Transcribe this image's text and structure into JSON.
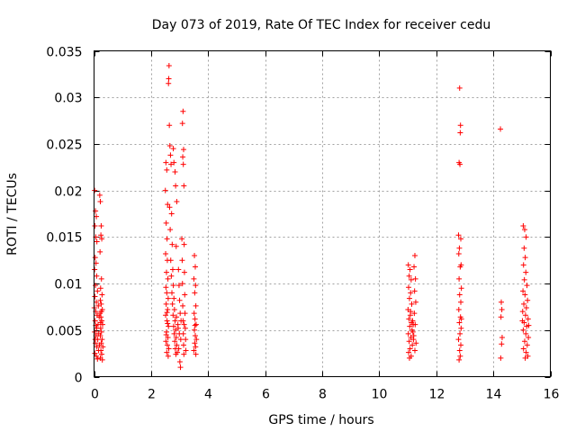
{
  "chart_data": {
    "type": "scatter",
    "title": "Day 073 of 2019, Rate Of TEC Index for receiver cedu",
    "xlabel": "GPS time / hours",
    "ylabel": "ROTI / TECUs",
    "xlim": [
      0,
      16
    ],
    "ylim": [
      0,
      0.035
    ],
    "x_ticks": [
      "0",
      "2",
      "4",
      "6",
      "8",
      "10",
      "12",
      "14",
      "16"
    ],
    "y_ticks": [
      "0",
      "0.005",
      "0.01",
      "0.015",
      "0.02",
      "0.025",
      "0.03",
      "0.035"
    ],
    "x_tick_values": [
      0,
      2,
      4,
      6,
      8,
      10,
      12,
      14,
      16
    ],
    "y_tick_values": [
      0,
      0.005,
      0.01,
      0.015,
      0.02,
      0.025,
      0.03,
      0.035
    ],
    "grid": true,
    "marker": "plus",
    "color": "#ff0000",
    "series": [
      {
        "name": "ROTI",
        "points": [
          [
            0.02,
            0.02
          ],
          [
            0.05,
            0.0178
          ],
          [
            0.08,
            0.0172
          ],
          [
            0.03,
            0.0162
          ],
          [
            0.06,
            0.015
          ],
          [
            0.1,
            0.0145
          ],
          [
            0.04,
            0.0128
          ],
          [
            0.07,
            0.0122
          ],
          [
            0.02,
            0.0115
          ],
          [
            0.09,
            0.0108
          ],
          [
            0.05,
            0.0098
          ],
          [
            0.12,
            0.0092
          ],
          [
            0.03,
            0.0086
          ],
          [
            0.08,
            0.008
          ],
          [
            0.15,
            0.0076
          ],
          [
            0.06,
            0.007
          ],
          [
            0.11,
            0.0066
          ],
          [
            0.04,
            0.006
          ],
          [
            0.14,
            0.0056
          ],
          [
            0.09,
            0.0052
          ],
          [
            0.02,
            0.0048
          ],
          [
            0.07,
            0.0044
          ],
          [
            0.13,
            0.004
          ],
          [
            0.05,
            0.0036
          ],
          [
            0.1,
            0.0032
          ],
          [
            0.16,
            0.0028
          ],
          [
            0.03,
            0.0025
          ],
          [
            0.08,
            0.0022
          ],
          [
            0.12,
            0.0019
          ],
          [
            0.06,
            0.0055
          ],
          [
            0.18,
            0.0064
          ],
          [
            0.01,
            0.0074
          ],
          [
            0.15,
            0.0046
          ],
          [
            0.19,
            0.0034
          ],
          [
            0.04,
            0.004
          ],
          [
            0.2,
            0.0195
          ],
          [
            0.22,
            0.0188
          ],
          [
            0.25,
            0.0162
          ],
          [
            0.24,
            0.0152
          ],
          [
            0.27,
            0.0148
          ],
          [
            0.21,
            0.0134
          ],
          [
            0.26,
            0.0105
          ],
          [
            0.23,
            0.0095
          ],
          [
            0.28,
            0.0088
          ],
          [
            0.22,
            0.0082
          ],
          [
            0.25,
            0.0078
          ],
          [
            0.29,
            0.0072
          ],
          [
            0.21,
            0.0068
          ],
          [
            0.24,
            0.0064
          ],
          [
            0.27,
            0.006
          ],
          [
            0.3,
            0.0056
          ],
          [
            0.23,
            0.0052
          ],
          [
            0.26,
            0.0048
          ],
          [
            0.22,
            0.0044
          ],
          [
            0.28,
            0.004
          ],
          [
            0.25,
            0.0036
          ],
          [
            0.31,
            0.0032
          ],
          [
            0.24,
            0.0028
          ],
          [
            0.27,
            0.0024
          ],
          [
            0.22,
            0.002
          ],
          [
            0.29,
            0.0018
          ],
          [
            0.26,
            0.007
          ],
          [
            0.23,
            0.0058
          ],
          [
            2.52,
            0.023
          ],
          [
            2.55,
            0.0222
          ],
          [
            2.5,
            0.02
          ],
          [
            2.58,
            0.0185
          ],
          [
            2.53,
            0.0165
          ],
          [
            2.56,
            0.0148
          ],
          [
            2.51,
            0.0132
          ],
          [
            2.57,
            0.0125
          ],
          [
            2.54,
            0.0112
          ],
          [
            2.59,
            0.0105
          ],
          [
            2.52,
            0.0096
          ],
          [
            2.55,
            0.009
          ],
          [
            2.6,
            0.0084
          ],
          [
            2.53,
            0.0078
          ],
          [
            2.58,
            0.0072
          ],
          [
            2.51,
            0.0066
          ],
          [
            2.56,
            0.006
          ],
          [
            2.61,
            0.0054
          ],
          [
            2.54,
            0.0048
          ],
          [
            2.59,
            0.0042
          ],
          [
            2.52,
            0.0038
          ],
          [
            2.57,
            0.0034
          ],
          [
            2.62,
            0.003
          ],
          [
            2.55,
            0.0026
          ],
          [
            2.6,
            0.0022
          ],
          [
            2.53,
            0.0045
          ],
          [
            2.58,
            0.0057
          ],
          [
            2.56,
            0.0069
          ],
          [
            2.63,
            0.0334
          ],
          [
            2.62,
            0.032
          ],
          [
            2.61,
            0.0315
          ],
          [
            2.64,
            0.027
          ],
          [
            2.66,
            0.0248
          ],
          [
            2.68,
            0.0238
          ],
          [
            2.7,
            0.0228
          ],
          [
            2.65,
            0.0182
          ],
          [
            2.72,
            0.0175
          ],
          [
            2.67,
            0.0158
          ],
          [
            2.74,
            0.0142
          ],
          [
            2.69,
            0.0125
          ],
          [
            2.76,
            0.0115
          ],
          [
            2.71,
            0.0108
          ],
          [
            2.78,
            0.0098
          ],
          [
            2.73,
            0.009
          ],
          [
            2.8,
            0.0084
          ],
          [
            2.75,
            0.0078
          ],
          [
            2.82,
            0.0072
          ],
          [
            2.77,
            0.0066
          ],
          [
            2.84,
            0.006
          ],
          [
            2.79,
            0.0054
          ],
          [
            2.86,
            0.005
          ],
          [
            2.81,
            0.0046
          ],
          [
            2.88,
            0.0042
          ],
          [
            2.83,
            0.0038
          ],
          [
            2.9,
            0.0034
          ],
          [
            2.85,
            0.003
          ],
          [
            2.92,
            0.0026
          ],
          [
            2.87,
            0.0024
          ],
          [
            2.94,
            0.0056
          ],
          [
            2.89,
            0.0064
          ],
          [
            2.78,
            0.0245
          ],
          [
            2.8,
            0.023
          ],
          [
            2.84,
            0.022
          ],
          [
            2.86,
            0.0205
          ],
          [
            2.9,
            0.0188
          ],
          [
            2.88,
            0.014
          ],
          [
            2.96,
            0.0115
          ],
          [
            2.98,
            0.0098
          ],
          [
            3.0,
            0.0082
          ],
          [
            3.02,
            0.0068
          ],
          [
            2.95,
            0.0052
          ],
          [
            3.04,
            0.004
          ],
          [
            2.97,
            0.003
          ],
          [
            3.01,
            0.0016
          ],
          [
            3.03,
            0.001
          ],
          [
            2.99,
            0.0046
          ],
          [
            3.05,
            0.006
          ],
          [
            3.12,
            0.0285
          ],
          [
            3.1,
            0.0272
          ],
          [
            3.14,
            0.0244
          ],
          [
            3.11,
            0.0236
          ],
          [
            3.13,
            0.0228
          ],
          [
            3.15,
            0.0205
          ],
          [
            3.08,
            0.0148
          ],
          [
            3.16,
            0.0142
          ],
          [
            3.09,
            0.0125
          ],
          [
            3.17,
            0.0112
          ],
          [
            3.1,
            0.01
          ],
          [
            3.18,
            0.0088
          ],
          [
            3.11,
            0.0076
          ],
          [
            3.19,
            0.0068
          ],
          [
            3.12,
            0.006
          ],
          [
            3.2,
            0.0052
          ],
          [
            3.13,
            0.0046
          ],
          [
            3.21,
            0.004
          ],
          [
            3.14,
            0.0034
          ],
          [
            3.22,
            0.0028
          ],
          [
            3.15,
            0.0024
          ],
          [
            3.16,
            0.0056
          ],
          [
            3.52,
            0.013
          ],
          [
            3.55,
            0.0118
          ],
          [
            3.5,
            0.0105
          ],
          [
            3.56,
            0.0098
          ],
          [
            3.53,
            0.009
          ],
          [
            3.57,
            0.0076
          ],
          [
            3.51,
            0.0068
          ],
          [
            3.54,
            0.0062
          ],
          [
            3.58,
            0.0056
          ],
          [
            3.52,
            0.005
          ],
          [
            3.55,
            0.0044
          ],
          [
            3.59,
            0.004
          ],
          [
            3.53,
            0.0036
          ],
          [
            3.56,
            0.0032
          ],
          [
            3.5,
            0.0028
          ],
          [
            3.57,
            0.0024
          ],
          [
            3.54,
            0.0055
          ],
          [
            11.02,
            0.012
          ],
          [
            11.08,
            0.0115
          ],
          [
            11.05,
            0.0108
          ],
          [
            11.12,
            0.0104
          ],
          [
            11.03,
            0.0096
          ],
          [
            11.1,
            0.009
          ],
          [
            11.06,
            0.0084
          ],
          [
            11.14,
            0.0078
          ],
          [
            11.01,
            0.0072
          ],
          [
            11.09,
            0.0066
          ],
          [
            11.04,
            0.0062
          ],
          [
            11.13,
            0.0058
          ],
          [
            11.07,
            0.0054
          ],
          [
            11.15,
            0.005
          ],
          [
            11.02,
            0.0046
          ],
          [
            11.11,
            0.0042
          ],
          [
            11.05,
            0.0038
          ],
          [
            11.16,
            0.0034
          ],
          [
            11.08,
            0.003
          ],
          [
            11.03,
            0.0026
          ],
          [
            11.12,
            0.0022
          ],
          [
            11.06,
            0.002
          ],
          [
            11.17,
            0.006
          ],
          [
            11.1,
            0.007
          ],
          [
            11.18,
            0.0048
          ],
          [
            11.2,
            0.004
          ],
          [
            11.19,
            0.0056
          ],
          [
            11.25,
            0.013
          ],
          [
            11.22,
            0.0118
          ],
          [
            11.27,
            0.0105
          ],
          [
            11.24,
            0.0092
          ],
          [
            11.28,
            0.008
          ],
          [
            11.23,
            0.0068
          ],
          [
            11.26,
            0.0056
          ],
          [
            11.21,
            0.0044
          ],
          [
            11.29,
            0.0036
          ],
          [
            11.25,
            0.0028
          ],
          [
            12.82,
            0.031
          ],
          [
            12.85,
            0.027
          ],
          [
            12.84,
            0.0262
          ],
          [
            12.8,
            0.023
          ],
          [
            12.83,
            0.0228
          ],
          [
            12.78,
            0.0152
          ],
          [
            12.86,
            0.0148
          ],
          [
            12.81,
            0.0138
          ],
          [
            12.79,
            0.0132
          ],
          [
            12.87,
            0.012
          ],
          [
            12.84,
            0.0118
          ],
          [
            12.8,
            0.0105
          ],
          [
            12.88,
            0.0095
          ],
          [
            12.82,
            0.0088
          ],
          [
            12.86,
            0.008
          ],
          [
            12.79,
            0.0072
          ],
          [
            12.85,
            0.0064
          ],
          [
            12.81,
            0.0058
          ],
          [
            12.87,
            0.0052
          ],
          [
            12.83,
            0.0046
          ],
          [
            12.78,
            0.004
          ],
          [
            12.86,
            0.0034
          ],
          [
            12.82,
            0.0028
          ],
          [
            12.84,
            0.0022
          ],
          [
            12.8,
            0.0018
          ],
          [
            12.88,
            0.0062
          ],
          [
            14.25,
            0.0266
          ],
          [
            14.28,
            0.008
          ],
          [
            14.3,
            0.0072
          ],
          [
            14.27,
            0.0064
          ],
          [
            14.31,
            0.0042
          ],
          [
            14.29,
            0.0035
          ],
          [
            14.26,
            0.002
          ],
          [
            15.05,
            0.0162
          ],
          [
            15.1,
            0.0158
          ],
          [
            15.15,
            0.015
          ],
          [
            15.08,
            0.0138
          ],
          [
            15.12,
            0.0128
          ],
          [
            15.06,
            0.012
          ],
          [
            15.14,
            0.0112
          ],
          [
            15.09,
            0.0104
          ],
          [
            15.18,
            0.0098
          ],
          [
            15.04,
            0.0092
          ],
          [
            15.11,
            0.0088
          ],
          [
            15.2,
            0.0082
          ],
          [
            15.07,
            0.0078
          ],
          [
            15.16,
            0.0074
          ],
          [
            15.03,
            0.007
          ],
          [
            15.13,
            0.0066
          ],
          [
            15.22,
            0.0062
          ],
          [
            15.08,
            0.0058
          ],
          [
            15.17,
            0.0054
          ],
          [
            15.05,
            0.005
          ],
          [
            15.14,
            0.0046
          ],
          [
            15.23,
            0.0042
          ],
          [
            15.1,
            0.0038
          ],
          [
            15.19,
            0.0034
          ],
          [
            15.06,
            0.003
          ],
          [
            15.15,
            0.0026
          ],
          [
            15.21,
            0.0022
          ],
          [
            15.12,
            0.002
          ],
          [
            15.02,
            0.006
          ],
          [
            15.24,
            0.0055
          ]
        ]
      }
    ]
  }
}
